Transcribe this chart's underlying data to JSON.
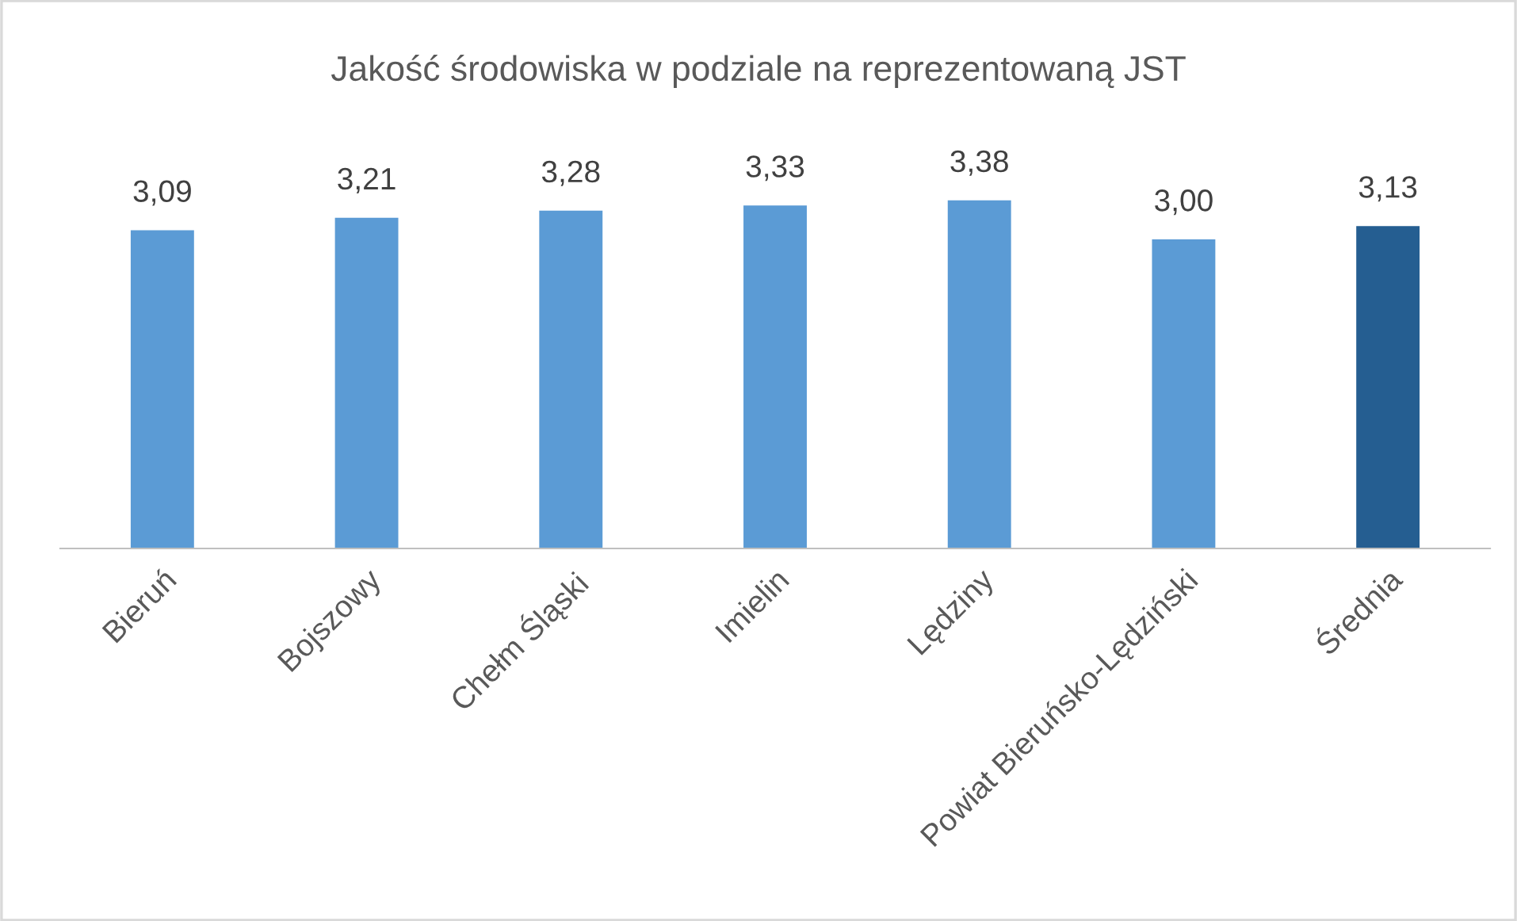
{
  "chart_data": {
    "type": "bar",
    "title": "Jakość środowiska w podziale na reprezentowaną JST",
    "categories": [
      "Bieruń",
      "Bojszowy",
      "Chełm Śląski",
      "Imielin",
      "Lędziny",
      "Powiat Bieruńsko-Lędziński",
      "Średnia"
    ],
    "values": [
      3.09,
      3.21,
      3.28,
      3.33,
      3.38,
      3.0,
      3.13
    ],
    "value_labels": [
      "3,09",
      "3,21",
      "3,28",
      "3,33",
      "3,38",
      "3,00",
      "3,13"
    ],
    "colors": [
      "#5b9bd5",
      "#5b9bd5",
      "#5b9bd5",
      "#5b9bd5",
      "#5b9bd5",
      "#5b9bd5",
      "#255e91"
    ],
    "tick_labels": "x",
    "grid": false,
    "legend": false
  }
}
